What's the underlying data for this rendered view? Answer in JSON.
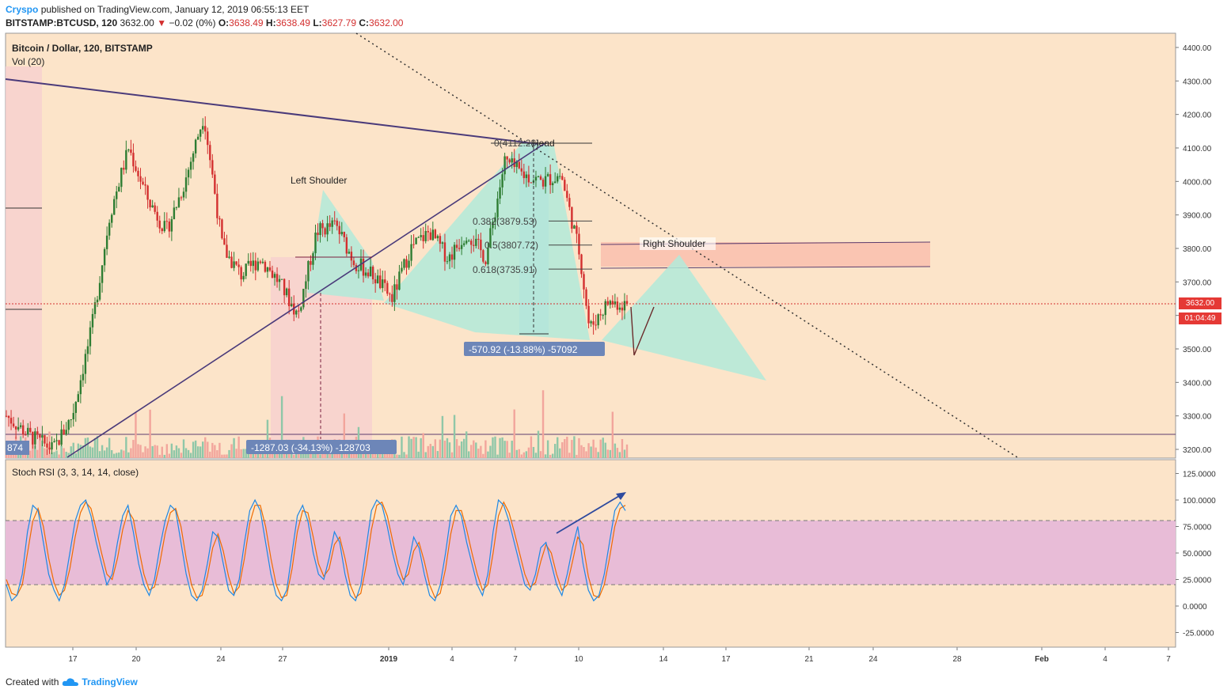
{
  "header": {
    "author": "Cryspo",
    "published_text": "published on TradingView.com, January 12, 2019 06:55:13 EET",
    "symbol": "BITSTAMP:BTCUSD, 120",
    "last": "3632.00",
    "change_arrow": "▼",
    "change": "−0.02 (0%)",
    "o_label": "O:",
    "o_value": "3638.49",
    "h_label": "H:",
    "h_value": "3638.49",
    "l_label": "L:",
    "l_value": "3627.79",
    "c_label": "C:",
    "c_value": "3632.00"
  },
  "pane": {
    "title": "Bitcoin / Dollar, 120, BITSTAMP",
    "vol_label": "Vol (20)",
    "stoch_label": "Stoch RSI (3, 3, 14, 14, close)"
  },
  "price_tag": {
    "price": "3632.00",
    "countdown": "01:04:49"
  },
  "annotations": {
    "left_shoulder": "Left Shoulder",
    "head": "Head",
    "right_shoulder": "Right Shoulder",
    "fib_0": "0(4112.28)",
    "fib_382": "0.382(3879.53)",
    "fib_5": "0.5(3807.72)",
    "fib_618": "0.618(3735.91)",
    "measure_1": "-1287.03 (-34.13%) -128703",
    "measure_2": "-570.92 (-13.88%) -57092",
    "measure_left": "874"
  },
  "footer": {
    "created_with": "Created with",
    "brand": "TradingView"
  },
  "colors": {
    "bg_pane": "#fce4c9",
    "up": "#2e7d32",
    "down": "#d32f2f",
    "stoch_band": "#e8bcd7",
    "k_line": "#1e88e5",
    "d_line": "#ef6c00",
    "price_tag": "#e53935",
    "wedge": "#b2ead9"
  },
  "chart_data": [
    {
      "type": "candlestick",
      "name": "BITSTAMP:BTCUSD 120",
      "y_axis_ticks": [
        4400,
        4300,
        4200,
        4100,
        4000,
        3900,
        3800,
        3700,
        3600,
        3500,
        3400,
        3300,
        3200
      ],
      "y_tick_labels": [
        "4400.00",
        "4300.00",
        "4200.00",
        "4100.00",
        "4000.00",
        "3900.00",
        "3800.00",
        "3700.00",
        "3600.00",
        "3500.00",
        "3400.00",
        "3300.00",
        "3200.00"
      ],
      "ylim": [
        3165,
        4440
      ],
      "x_tick_labels": [
        "17",
        "20",
        "24",
        "27",
        "2019",
        "4",
        "7",
        "10",
        "14",
        "17",
        "21",
        "24",
        "28",
        "Feb",
        "4",
        "7"
      ],
      "approx_path": [
        [
          0,
          3300
        ],
        [
          5,
          3240
        ],
        [
          10,
          3200
        ],
        [
          14,
          3300
        ],
        [
          18,
          3550
        ],
        [
          22,
          3900
        ],
        [
          26,
          4100
        ],
        [
          30,
          3950
        ],
        [
          34,
          3850
        ],
        [
          38,
          4000
        ],
        [
          42,
          4200
        ],
        [
          46,
          3800
        ],
        [
          50,
          3720
        ],
        [
          54,
          3770
        ],
        [
          58,
          3700
        ],
        [
          62,
          3600
        ],
        [
          66,
          3850
        ],
        [
          70,
          3870
        ],
        [
          74,
          3760
        ],
        [
          78,
          3720
        ],
        [
          82,
          3650
        ],
        [
          86,
          3800
        ],
        [
          90,
          3850
        ],
        [
          94,
          3770
        ],
        [
          98,
          3850
        ],
        [
          102,
          3770
        ],
        [
          106,
          4060
        ],
        [
          110,
          4020
        ],
        [
          114,
          4000
        ],
        [
          118,
          4020
        ],
        [
          122,
          3780
        ],
        [
          124,
          3560
        ],
        [
          128,
          3640
        ],
        [
          132,
          3632
        ]
      ],
      "last_price": 3632.0,
      "fibonacci": [
        {
          "level": "0",
          "price": 4112.28
        },
        {
          "level": "0.382",
          "price": 3879.53
        },
        {
          "level": "0.5",
          "price": 3807.72
        },
        {
          "level": "0.618",
          "price": 3735.91
        }
      ]
    },
    {
      "type": "line",
      "name": "Stoch RSI (3, 3, 14, 14, close)",
      "y_axis_ticks": [
        125,
        100,
        75,
        50,
        25,
        0,
        -25
      ],
      "y_tick_labels": [
        "125.0000",
        "100.0000",
        "75.0000",
        "50.0000",
        "25.0000",
        "0.0000",
        "-25.0000"
      ],
      "ylim": [
        -40,
        140
      ],
      "bands": [
        20,
        80
      ],
      "k": [
        20,
        5,
        10,
        30,
        70,
        95,
        90,
        60,
        30,
        15,
        5,
        20,
        50,
        80,
        95,
        100,
        85,
        60,
        40,
        20,
        30,
        60,
        85,
        95,
        70,
        40,
        20,
        10,
        25,
        55,
        80,
        95,
        90,
        60,
        30,
        10,
        5,
        15,
        40,
        70,
        65,
        40,
        15,
        10,
        25,
        60,
        90,
        100,
        90,
        60,
        30,
        10,
        5,
        15,
        50,
        85,
        95,
        80,
        50,
        30,
        25,
        45,
        70,
        60,
        30,
        10,
        5,
        20,
        55,
        90,
        100,
        95,
        75,
        50,
        30,
        20,
        40,
        65,
        55,
        30,
        10,
        5,
        20,
        50,
        85,
        95,
        85,
        60,
        40,
        20,
        10,
        30,
        70,
        100,
        95,
        80,
        60,
        40,
        20,
        15,
        30,
        55,
        60,
        40,
        20,
        10,
        30,
        55,
        75,
        40,
        15,
        5,
        10,
        30,
        60,
        90,
        98,
        90
      ],
      "d": [
        25,
        12,
        10,
        20,
        50,
        80,
        92,
        75,
        45,
        22,
        10,
        15,
        35,
        65,
        88,
        98,
        92,
        72,
        50,
        30,
        25,
        45,
        72,
        90,
        82,
        55,
        30,
        15,
        18,
        40,
        68,
        88,
        92,
        75,
        45,
        20,
        8,
        10,
        28,
        55,
        68,
        52,
        28,
        12,
        18,
        45,
        78,
        95,
        95,
        75,
        45,
        20,
        8,
        10,
        35,
        70,
        90,
        88,
        65,
        40,
        28,
        35,
        58,
        65,
        45,
        20,
        8,
        12,
        38,
        72,
        95,
        98,
        85,
        62,
        40,
        25,
        30,
        52,
        60,
        42,
        20,
        8,
        12,
        35,
        68,
        90,
        90,
        72,
        50,
        30,
        15,
        20,
        50,
        85,
        98,
        88,
        70,
        50,
        30,
        18,
        22,
        42,
        58,
        50,
        30,
        15,
        20,
        42,
        65,
        58,
        28,
        10,
        8,
        20,
        45,
        75,
        92,
        95
      ]
    }
  ]
}
